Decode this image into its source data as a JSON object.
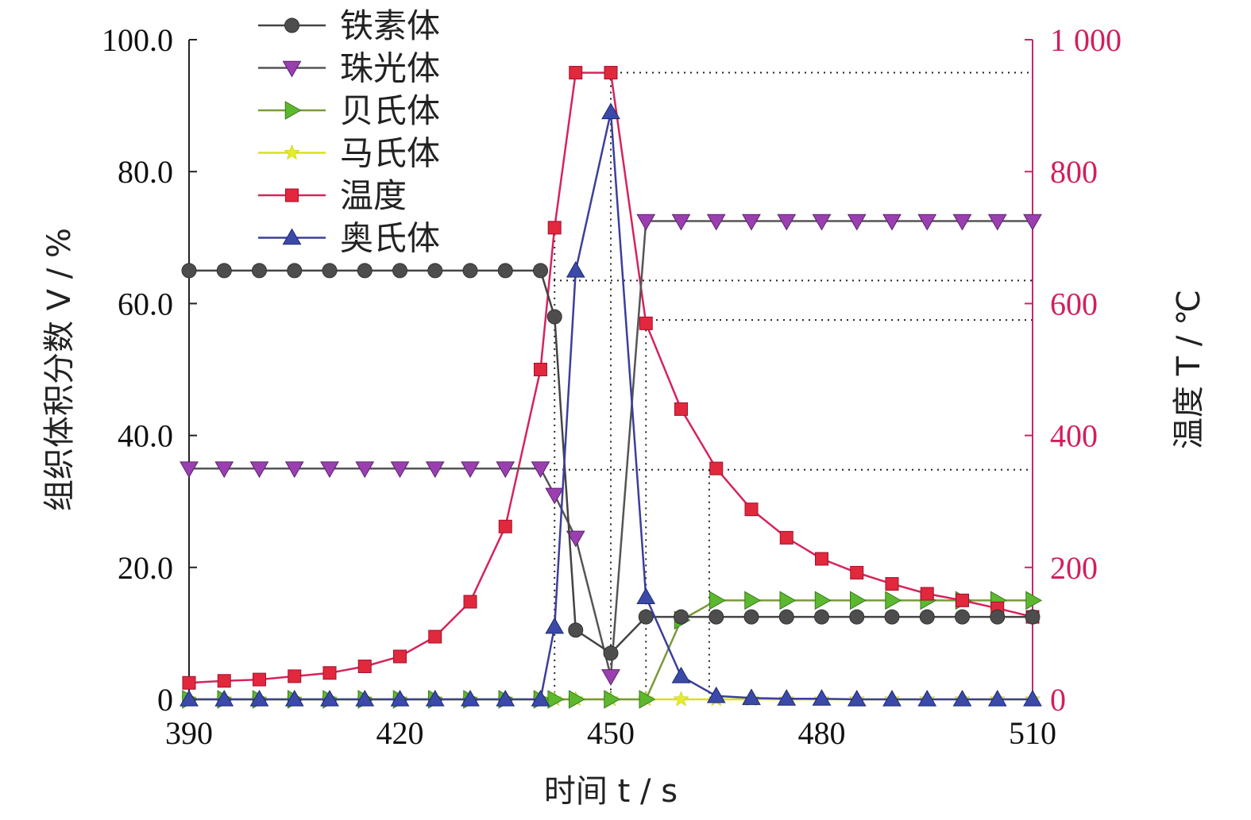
{
  "chart_data": {
    "type": "line",
    "xlabel": "时间 t / s",
    "ylabel_left": "组织体积分数 V / %",
    "ylabel_right": "温度 T / ℃",
    "xlim": [
      390,
      510
    ],
    "ylim_left": [
      0,
      100
    ],
    "ylim_right": [
      0,
      1000
    ],
    "x_ticks": [
      "390",
      "420",
      "450",
      "480",
      "510"
    ],
    "y_left_ticks": [
      "0",
      "20.0",
      "40.0",
      "60.0",
      "80.0",
      "100.0"
    ],
    "y_right_ticks": [
      "0",
      "200",
      "400",
      "600",
      "800",
      "1 000"
    ],
    "x": [
      390,
      395,
      400,
      405,
      410,
      415,
      420,
      425,
      430,
      435,
      440,
      442,
      445,
      450,
      455,
      460,
      465,
      470,
      475,
      480,
      485,
      490,
      495,
      500,
      505,
      510
    ],
    "legend_position": "top-left",
    "colors": {
      "axis": "#222222",
      "right_axis": "#c8286b",
      "right_text": "#d21f5a"
    },
    "series": [
      {
        "name": "铁素体",
        "axis": "left",
        "marker": "circle",
        "line_color": "#444444",
        "marker_color": "#4d4d4d",
        "values": [
          65,
          65,
          65,
          65,
          65,
          65,
          65,
          65,
          65,
          65,
          65,
          58,
          10.5,
          7,
          12.5,
          12.5,
          12.5,
          12.5,
          12.5,
          12.5,
          12.5,
          12.5,
          12.5,
          12.5,
          12.5,
          12.5
        ]
      },
      {
        "name": "珠光体",
        "axis": "left",
        "marker": "triangle-down",
        "line_color": "#555555",
        "marker_color": "#9b3fb0",
        "values": [
          35,
          35,
          35,
          35,
          35,
          35,
          35,
          35,
          35,
          35,
          35,
          31,
          24.5,
          3.5,
          72.5,
          72.5,
          72.5,
          72.5,
          72.5,
          72.5,
          72.5,
          72.5,
          72.5,
          72.5,
          72.5,
          72.5
        ]
      },
      {
        "name": "贝氏体",
        "axis": "left",
        "marker": "triangle-right",
        "line_color": "#7a9a3a",
        "marker_color": "#5cb82e",
        "values": [
          0,
          0,
          0,
          0,
          0,
          0,
          0,
          0,
          0,
          0,
          0,
          0,
          0,
          0,
          0,
          12,
          15,
          15,
          15,
          15,
          15,
          15,
          15,
          15,
          15,
          15
        ]
      },
      {
        "name": "马氏体",
        "axis": "left",
        "marker": "star",
        "line_color": "#d8e21a",
        "marker_color": "#e6ee1e",
        "values": [
          0,
          0,
          0,
          0,
          0,
          0,
          0,
          0,
          0,
          0,
          0,
          0,
          0,
          0,
          0,
          0,
          0,
          0,
          0,
          0,
          0,
          0,
          0,
          0,
          0,
          0
        ]
      },
      {
        "name": "温度",
        "axis": "right",
        "marker": "square",
        "line_color": "#d6245a",
        "marker_color": "#e2283c",
        "values": [
          25,
          28,
          30,
          35,
          40,
          50,
          65,
          95,
          148,
          262,
          500,
          715,
          950,
          950,
          570,
          440,
          350,
          288,
          245,
          213,
          192,
          175,
          160,
          150,
          138,
          125
        ]
      },
      {
        "name": "奥氏体",
        "axis": "left",
        "marker": "triangle-up",
        "line_color": "#3b3f9a",
        "marker_color": "#3b4aa8",
        "values": [
          0,
          0,
          0,
          0,
          0,
          0,
          0,
          0,
          0,
          0,
          0,
          11,
          65,
          89,
          15.5,
          3.5,
          0.5,
          0.2,
          0.1,
          0.1,
          0,
          0,
          0,
          0,
          0,
          0
        ]
      }
    ],
    "reference_lines": {
      "vertical_x": [
        442,
        450,
        455,
        464
      ],
      "horizontal_right_T": [
        950,
        635,
        575,
        348
      ]
    }
  }
}
